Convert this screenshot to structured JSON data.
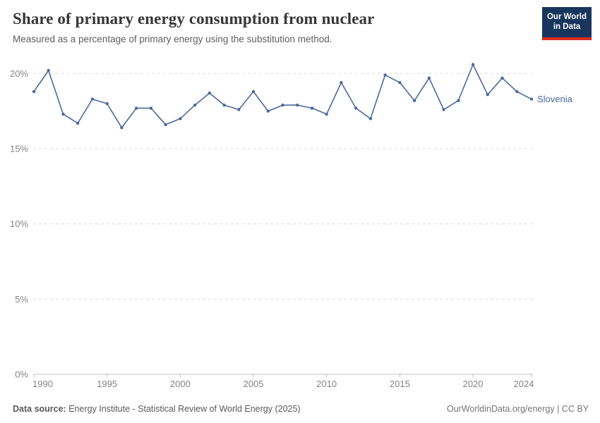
{
  "header": {
    "title": "Share of primary energy consumption from nuclear",
    "subtitle": "Measured as a percentage of primary energy using the substitution method.",
    "logo": {
      "line1": "Our World",
      "line2": "in Data",
      "bg_color": "#18365d",
      "accent_color": "#dc2b1c"
    }
  },
  "chart_data": {
    "type": "line",
    "title": "Share of primary energy consumption from nuclear",
    "xlabel": "",
    "ylabel": "",
    "ylim": [
      0,
      21
    ],
    "grid": "horizontal-dashed",
    "legend_position": "end-of-line",
    "yticks": [
      0,
      5,
      10,
      15,
      20
    ],
    "ytick_labels": [
      "0%",
      "5%",
      "10%",
      "15%",
      "20%"
    ],
    "xticks": [
      1990,
      1995,
      2000,
      2005,
      2010,
      2015,
      2020,
      2024
    ],
    "xtick_labels": [
      "1990",
      "1995",
      "2000",
      "2005",
      "2010",
      "2015",
      "2020",
      "2024"
    ],
    "x": [
      1990,
      1991,
      1992,
      1993,
      1994,
      1995,
      1996,
      1997,
      1998,
      1999,
      2000,
      2001,
      2002,
      2003,
      2004,
      2005,
      2006,
      2007,
      2008,
      2009,
      2010,
      2011,
      2012,
      2013,
      2014,
      2015,
      2016,
      2017,
      2018,
      2019,
      2020,
      2021,
      2022,
      2023,
      2024
    ],
    "series": [
      {
        "name": "Slovenia",
        "color": "#4C6A9C",
        "values": [
          18.8,
          20.2,
          17.3,
          16.7,
          18.3,
          18.0,
          16.4,
          17.7,
          17.7,
          16.6,
          17.0,
          17.9,
          18.7,
          17.9,
          17.6,
          18.8,
          17.5,
          17.9,
          17.9,
          17.7,
          17.3,
          19.4,
          17.7,
          17.0,
          19.9,
          19.4,
          18.2,
          19.7,
          17.6,
          18.2,
          20.6,
          18.6,
          19.7,
          18.8,
          18.3
        ]
      }
    ],
    "axis_color": "#c0c0c0",
    "gridline_color": "#dcdcdc",
    "tick_label_color": "#848484"
  },
  "footer": {
    "datasource_label": "Data source:",
    "datasource_text": " Energy Institute - Statistical Review of World Energy (2025)",
    "credit": "OurWorldinData.org/energy | CC BY"
  }
}
